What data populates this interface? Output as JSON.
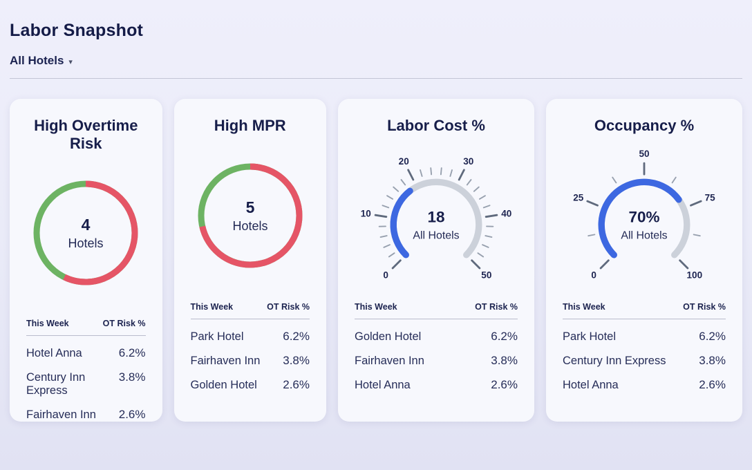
{
  "header": {
    "title": "Labor Snapshot",
    "filter_label": "All Hotels",
    "caret_icon": "▾"
  },
  "colors": {
    "risk_red": "#e55566",
    "ok_green": "#6db363",
    "gauge_blue": "#3d68e1",
    "gauge_track": "#ccd1da",
    "navy_text": "#171e4a",
    "card_bg": "#f7f8fd"
  },
  "cards": [
    {
      "title": "High Overtime Risk",
      "chart": {
        "type": "donut",
        "value": 4,
        "total": 7,
        "unit_label": "Hotels",
        "risk_color": "#e55566",
        "ok_color": "#6db363"
      },
      "table": {
        "headers": [
          "This Week",
          "OT Risk %"
        ],
        "rows": [
          [
            "Hotel Anna",
            "6.2%"
          ],
          [
            "Century Inn Express",
            "3.8%"
          ],
          [
            "Fairhaven Inn",
            "2.6%"
          ]
        ]
      }
    },
    {
      "title": "High MPR",
      "chart": {
        "type": "donut",
        "value": 5,
        "total": 7,
        "unit_label": "Hotels",
        "risk_color": "#e55566",
        "ok_color": "#6db363"
      },
      "table": {
        "headers": [
          "This Week",
          "OT Risk %"
        ],
        "rows": [
          [
            "Park Hotel",
            "6.2%"
          ],
          [
            "Fairhaven Inn",
            "3.8%"
          ],
          [
            "Golden Hotel",
            "2.6%"
          ]
        ]
      }
    },
    {
      "title": "Labor Cost %",
      "chart": {
        "type": "gauge",
        "value": 18,
        "display_value": "18",
        "sub_label": "All Hotels",
        "min": 0,
        "max": 50,
        "major_step": 10,
        "minor_step": 2,
        "tick_labels": [
          0,
          10,
          20,
          30,
          40,
          50
        ],
        "progress_color": "#3d68e1",
        "track_color": "#ccd1da"
      },
      "table": {
        "headers": [
          "This Week",
          "OT Risk %"
        ],
        "rows": [
          [
            "Golden Hotel",
            "6.2%"
          ],
          [
            "Fairhaven Inn",
            "3.8%"
          ],
          [
            "Hotel Anna",
            "2.6%"
          ]
        ]
      }
    },
    {
      "title": "Occupancy %",
      "chart": {
        "type": "gauge",
        "value": 70,
        "display_value": "70%",
        "sub_label": "All Hotels",
        "min": 0,
        "max": 100,
        "major_step": 25,
        "minor_step": 12.5,
        "tick_labels": [
          0,
          25,
          50,
          75,
          100
        ],
        "progress_color": "#3d68e1",
        "track_color": "#ccd1da"
      },
      "table": {
        "headers": [
          "This Week",
          "OT Risk %"
        ],
        "rows": [
          [
            "Park Hotel",
            "6.2%"
          ],
          [
            "Century Inn Express",
            "3.8%"
          ],
          [
            "Hotel Anna",
            "2.6%"
          ]
        ]
      }
    }
  ]
}
